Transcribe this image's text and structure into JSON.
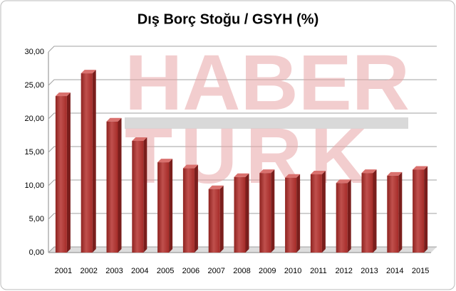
{
  "chart_data": {
    "type": "bar",
    "title": "Dış Borç Stoğu / GSYH (%)",
    "watermark": [
      "HABER",
      "TURK"
    ],
    "categories": [
      "2001",
      "2002",
      "2003",
      "2004",
      "2005",
      "2006",
      "2007",
      "2008",
      "2009",
      "2010",
      "2011",
      "2012",
      "2013",
      "2014",
      "2015"
    ],
    "values": [
      23.4,
      26.8,
      19.6,
      16.7,
      13.5,
      12.6,
      9.5,
      11.3,
      11.9,
      11.2,
      11.7,
      10.4,
      11.9,
      11.5,
      12.4
    ],
    "color": "#c0504d",
    "ylim": [
      0,
      30
    ],
    "yticks": [
      {
        "value": 0,
        "label": "0,00"
      },
      {
        "value": 5,
        "label": "5,00"
      },
      {
        "value": 10,
        "label": "10,00"
      },
      {
        "value": 15,
        "label": "15,00"
      },
      {
        "value": 20,
        "label": "20,00"
      },
      {
        "value": 25,
        "label": "25,00"
      },
      {
        "value": 30,
        "label": "30,00"
      }
    ],
    "grid": true
  }
}
